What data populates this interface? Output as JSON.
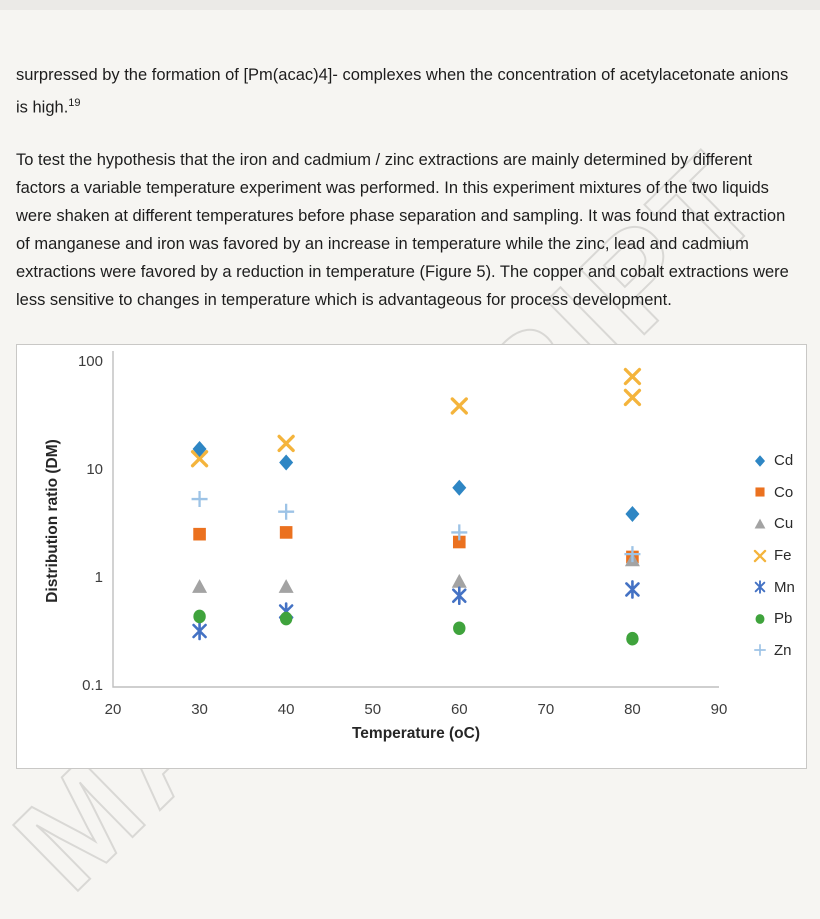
{
  "page": {
    "background": "#f6f5f2",
    "watermark_text": "MANUSCRIPT",
    "watermark_color": "#d9d8d5"
  },
  "document": {
    "paragraph1": "surpressed by the formation of [Pm(acac)4]- complexes when the concentration of acetylacetonate anions is high.",
    "paragraph1_ref": "19",
    "paragraph2": "To test the hypothesis that the iron and cadmium / zinc extractions are mainly determined by different factors a variable temperature experiment was performed. In this experiment mixtures of the two liquids were shaken at different temperatures before phase separation and sampling. It was found that extraction of manganese and iron was favored by an increase in temperature while the zinc, lead and cadmium extractions were favored by a reduction in temperature (Figure 5). The copper and cobalt extractions were less sensitive to changes in temperature which is advantageous for process development."
  },
  "chart_data": {
    "type": "scatter",
    "title": "",
    "xlabel": "Temperature (oC)",
    "ylabel": "Distribution ratio (DM)",
    "x_scale": "linear",
    "y_scale": "log",
    "xlim": [
      20,
      90
    ],
    "ylim": [
      0.1,
      100
    ],
    "x_ticks": [
      20,
      30,
      40,
      50,
      60,
      70,
      80,
      90
    ],
    "y_ticks": [
      "100",
      "10",
      "1",
      "0.1"
    ],
    "y_tick_values": [
      100,
      10,
      1,
      0.1
    ],
    "grid": false,
    "legend_position": "right",
    "axis_color": "#bfbfbf",
    "series": [
      {
        "name": "Cd",
        "marker": "diamond",
        "color": "#2e86c4",
        "points": [
          [
            30,
            16
          ],
          [
            40,
            12
          ],
          [
            60,
            7
          ],
          [
            80,
            4
          ]
        ]
      },
      {
        "name": "Co",
        "marker": "square",
        "color": "#eb711f",
        "points": [
          [
            30,
            2.6
          ],
          [
            40,
            2.7
          ],
          [
            60,
            2.2
          ],
          [
            80,
            1.6
          ]
        ]
      },
      {
        "name": "Cu",
        "marker": "triangle",
        "color": "#a3a3a3",
        "points": [
          [
            30,
            0.85
          ],
          [
            40,
            0.85
          ],
          [
            60,
            0.95
          ],
          [
            80,
            1.5
          ]
        ]
      },
      {
        "name": "Fe",
        "marker": "x",
        "color": "#f4b43c",
        "points": [
          [
            30,
            13
          ],
          [
            40,
            18
          ],
          [
            60,
            40
          ],
          [
            80,
            75
          ],
          [
            80,
            48
          ]
        ]
      },
      {
        "name": "Mn",
        "marker": "asterisk",
        "color": "#4472c4",
        "points": [
          [
            30,
            0.33
          ],
          [
            40,
            0.5
          ],
          [
            60,
            0.7
          ],
          [
            80,
            0.8
          ]
        ]
      },
      {
        "name": "Pb",
        "marker": "circle",
        "color": "#3fa33c",
        "points": [
          [
            30,
            0.45
          ],
          [
            40,
            0.43
          ],
          [
            60,
            0.35
          ],
          [
            80,
            0.28
          ]
        ]
      },
      {
        "name": "Zn",
        "marker": "plus",
        "color": "#9dc3e6",
        "points": [
          [
            30,
            5.5
          ],
          [
            40,
            4.2
          ],
          [
            60,
            2.7
          ],
          [
            80,
            1.7
          ]
        ]
      }
    ],
    "draw_order": [
      "Fe",
      "Co",
      "Cu",
      "Cd",
      "Mn",
      "Pb",
      "Zn"
    ]
  }
}
